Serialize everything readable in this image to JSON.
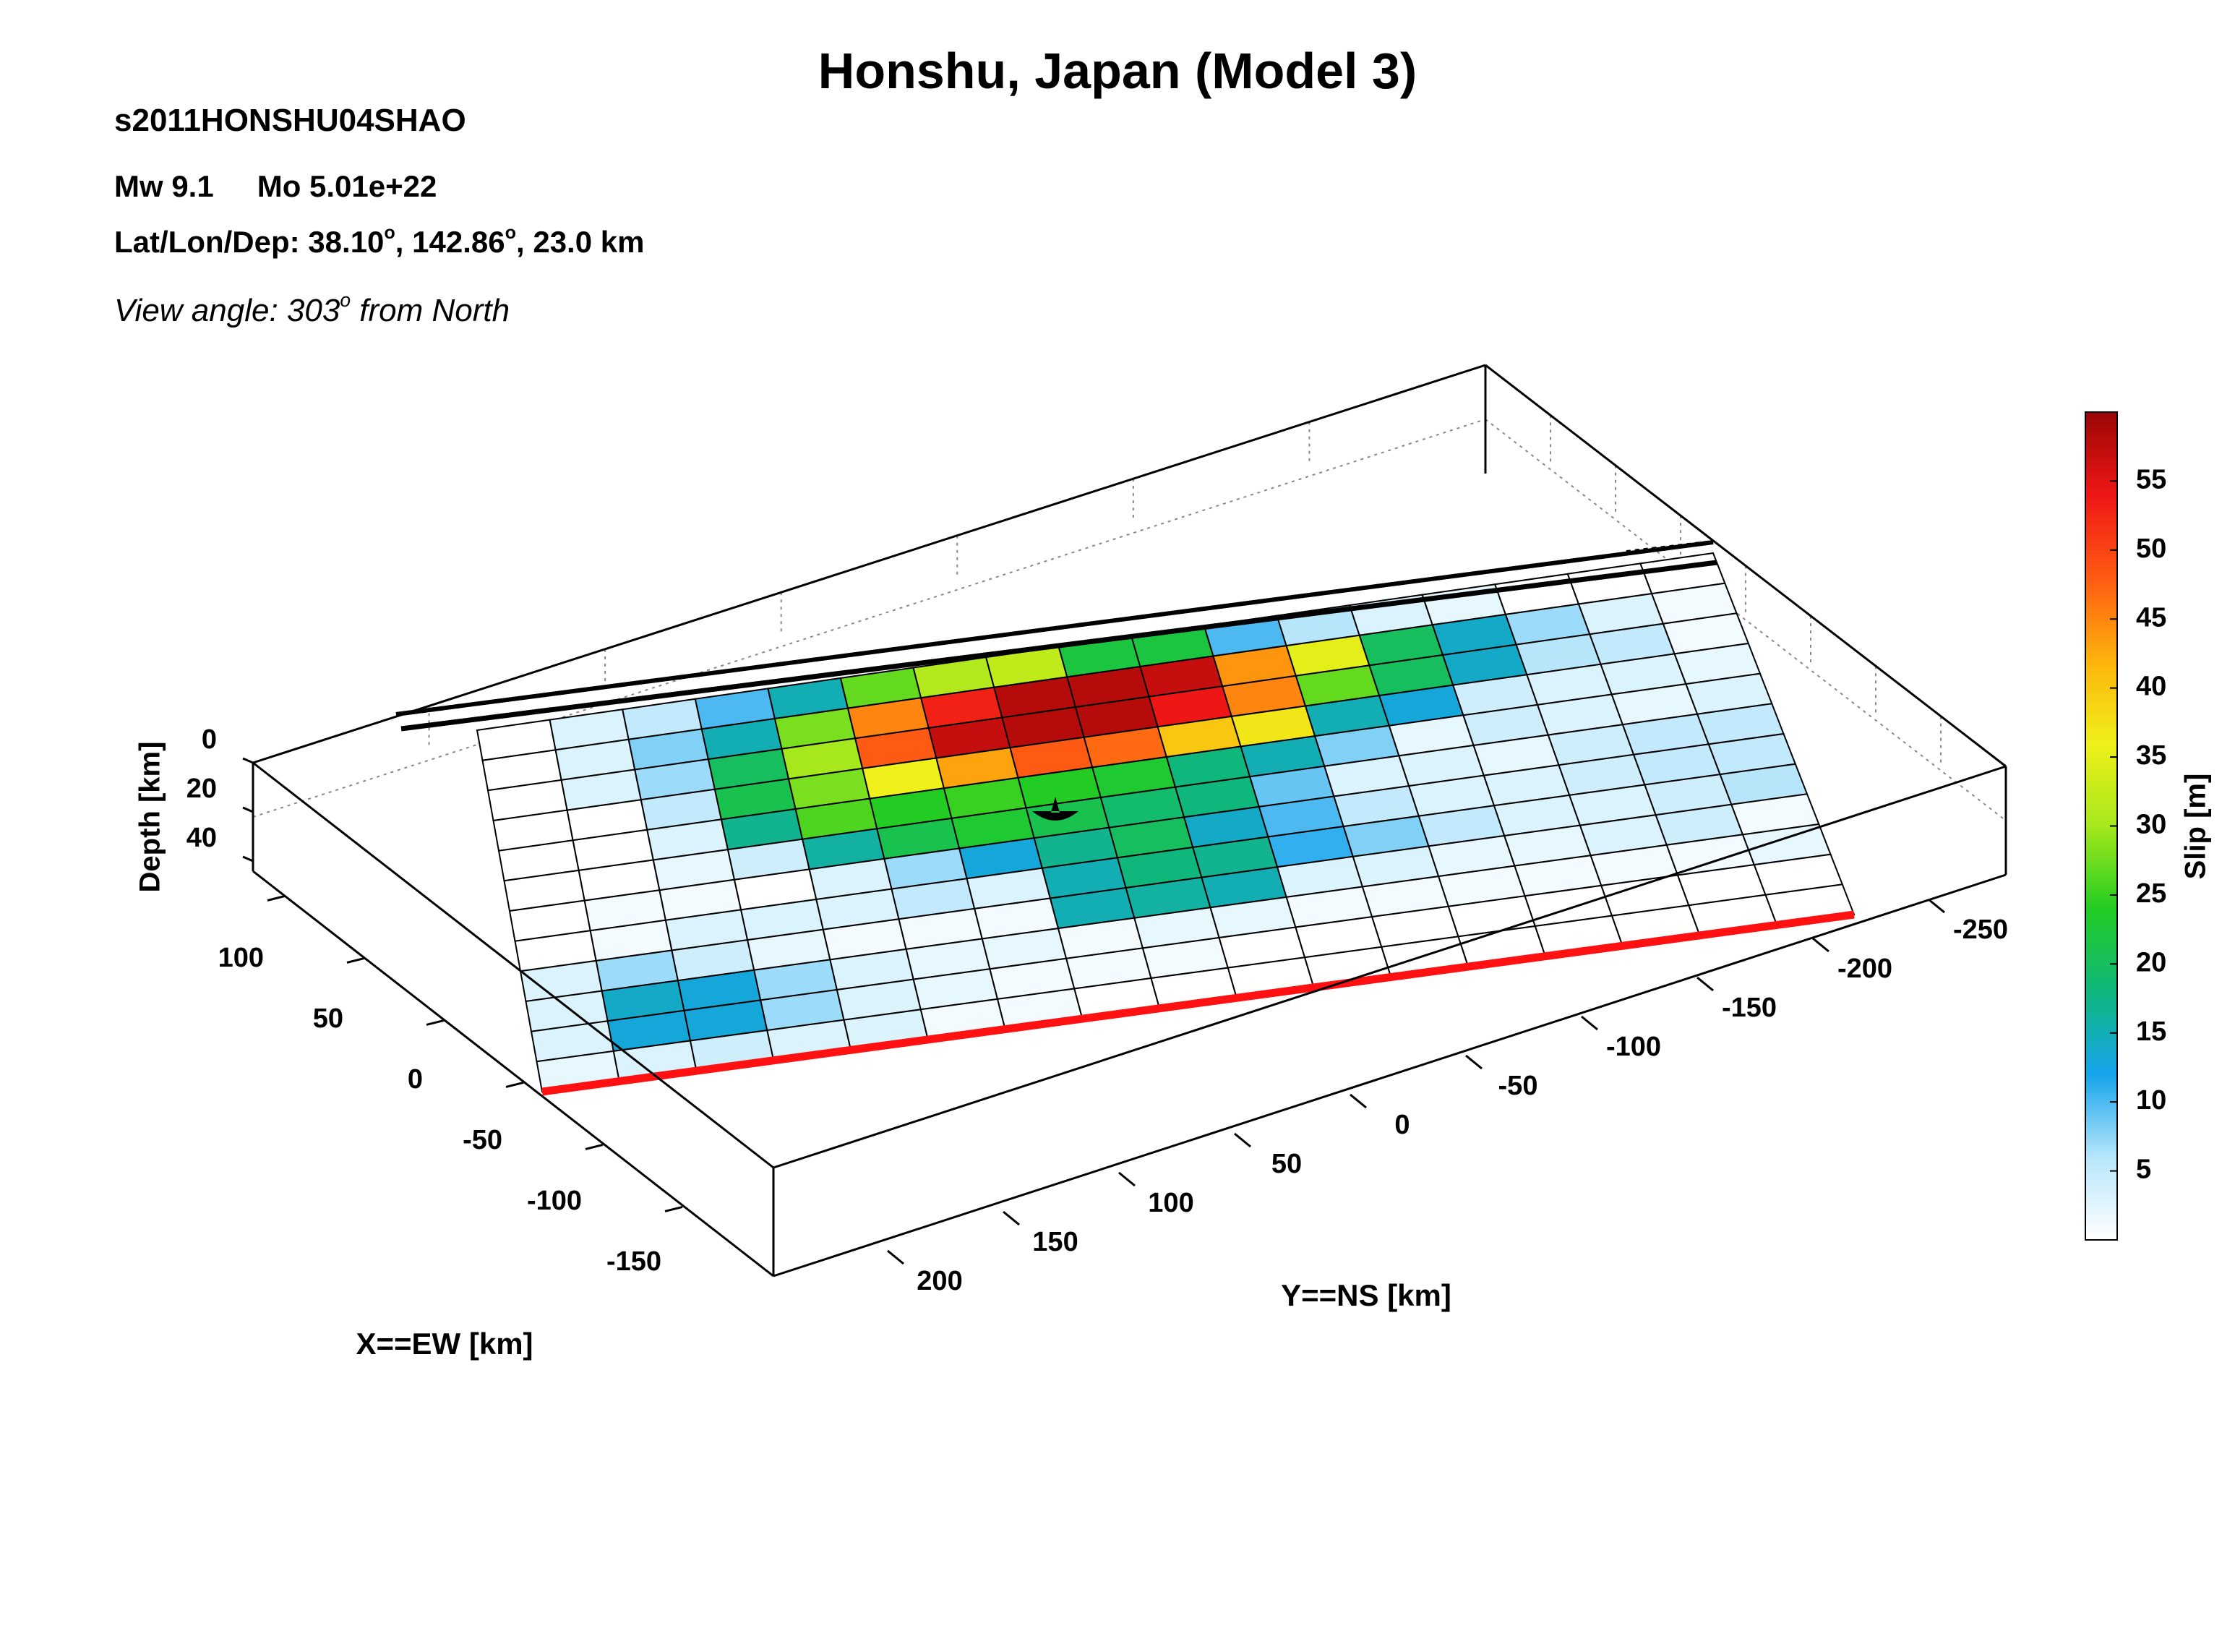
{
  "header": {
    "title": "Honshu, Japan (Model 3)",
    "event_id": "s2011HONSHU04SHAO",
    "mw": "Mw 9.1",
    "mo": "Mo 5.01e+22",
    "loc_prefix": "Lat/Lon/Dep: 38.10",
    "loc_mid": ", 142.86",
    "loc_suffix": ", 23.0 km",
    "deg": "o",
    "view_prefix": "View angle: 303",
    "view_suffix": " from North"
  },
  "chart_data": {
    "type": "heatmap",
    "title": "Honshu, Japan (Model 3)",
    "description_labels": {
      "xlabel": "X==EW [km]",
      "ylabel": "Y==NS [km]",
      "zlabel": "Depth [km]",
      "colorbar_label": "Slip [m]"
    },
    "x_ticks": [
      "100",
      "50",
      "0",
      "-50",
      "-100",
      "-150"
    ],
    "y_ticks": [
      "-250",
      "-200",
      "-150",
      "-100",
      "-50",
      "0",
      "50",
      "100",
      "150",
      "200"
    ],
    "z_ticks": [
      "0",
      "20",
      "40"
    ],
    "colorbar": {
      "ticks": [
        "5",
        "10",
        "15",
        "20",
        "25",
        "30",
        "35",
        "40",
        "45",
        "50",
        "55"
      ],
      "range": [
        0,
        60
      ],
      "colors": [
        "#ffffff",
        "#b7e6fb",
        "#16a4ec",
        "#10b77c",
        "#22cc22",
        "#a6e81c",
        "#f0f01a",
        "#fdb20c",
        "#ff5a13",
        "#ef1616",
        "#9a0606"
      ]
    },
    "slip_grid_m": [
      [
        0,
        3,
        5,
        10,
        15,
        27,
        31,
        32,
        22,
        22,
        10,
        6,
        3,
        2,
        0,
        0,
        0
      ],
      [
        0,
        3,
        8,
        15,
        28,
        45,
        53,
        58,
        58,
        57,
        44,
        35,
        20,
        14,
        7,
        3,
        1
      ],
      [
        0,
        3,
        7,
        20,
        30,
        48,
        57,
        58,
        58,
        54,
        45,
        27,
        20,
        14,
        6,
        5,
        1
      ],
      [
        0,
        0,
        5,
        21,
        28,
        36,
        43,
        48,
        47,
        40,
        37,
        15,
        13,
        4,
        3,
        3,
        2
      ],
      [
        0,
        0,
        3,
        17,
        26,
        24,
        25,
        24,
        23,
        18,
        15,
        8,
        2,
        4,
        3,
        2,
        3
      ],
      [
        0,
        0,
        2,
        4,
        16,
        21,
        23,
        21,
        19,
        18,
        9,
        3,
        3,
        2,
        4,
        5,
        5
      ],
      [
        0,
        1,
        1,
        0,
        3,
        7,
        13,
        17,
        20,
        14,
        10,
        5,
        3,
        3,
        4,
        5,
        5
      ],
      [
        0,
        1,
        3,
        3,
        3,
        5,
        3,
        15,
        18,
        17,
        11,
        8,
        5,
        3,
        3,
        4,
        6
      ],
      [
        3,
        7,
        4,
        2,
        1,
        1,
        1,
        15,
        16,
        15,
        3,
        3,
        2,
        2,
        3,
        4,
        1
      ],
      [
        3,
        14,
        13,
        7,
        3,
        2,
        2,
        1,
        2,
        2,
        1,
        1,
        1,
        1,
        1,
        1,
        2
      ],
      [
        3,
        13,
        13,
        7,
        3,
        2,
        1,
        1,
        1,
        0,
        0,
        0,
        0,
        0,
        0,
        0,
        0
      ],
      [
        2,
        3,
        4,
        3,
        3,
        1,
        1,
        0,
        0,
        0,
        0,
        0,
        0,
        0,
        0,
        0,
        0
      ]
    ],
    "hypocenter": {
      "x_km": 0,
      "y_km": 0,
      "depth_km": 23.0
    }
  }
}
